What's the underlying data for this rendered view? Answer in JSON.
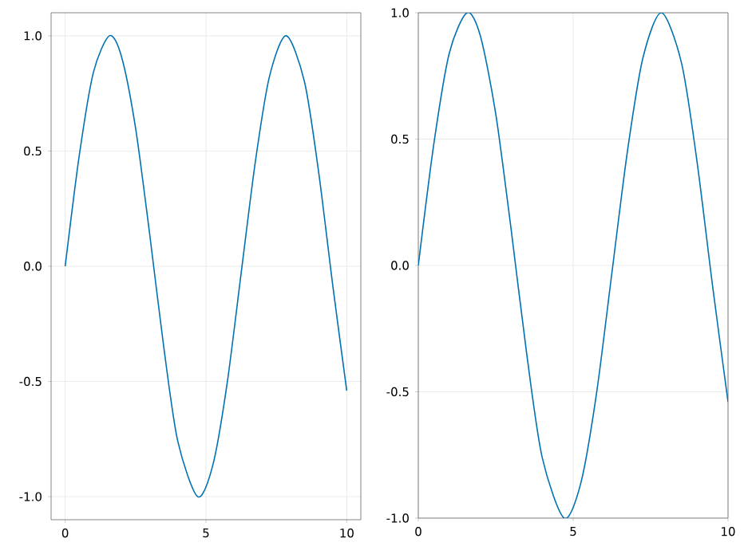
{
  "chart_data": [
    {
      "type": "line",
      "x": [
        0,
        0.5,
        1,
        1.57,
        2,
        2.5,
        3,
        3.5,
        4,
        4.71,
        5.25,
        5.75,
        6.25,
        6.75,
        7.25,
        7.85,
        8.5,
        9,
        9.5,
        10
      ],
      "series": [
        {
          "color": "#0072b2",
          "values": [
            0,
            0.48,
            0.84,
            1.0,
            0.91,
            0.6,
            0.14,
            -0.35,
            -0.76,
            -1.0,
            -0.86,
            -0.51,
            -0.03,
            0.45,
            0.82,
            1.0,
            0.8,
            0.41,
            -0.08,
            -0.54
          ]
        }
      ],
      "xlim": [
        -0.5,
        10.5
      ],
      "ylim": [
        -1.1,
        1.1
      ],
      "xticks": [
        0,
        5,
        10
      ],
      "yticks": [
        {
          "value": -1,
          "label": "-1.0"
        },
        {
          "value": -0.5,
          "label": "-0.5"
        },
        {
          "value": 0,
          "label": "0.0"
        },
        {
          "value": 0.5,
          "label": "0.5"
        },
        {
          "value": 1,
          "label": "1.0"
        }
      ],
      "grid": true,
      "line_style": "solid",
      "marker": "none"
    },
    {
      "type": "line",
      "x": [
        0,
        0.5,
        1,
        1.57,
        2,
        2.5,
        3,
        3.5,
        4,
        4.71,
        5.25,
        5.75,
        6.25,
        6.75,
        7.25,
        7.85,
        8.5,
        9,
        9.5,
        10
      ],
      "series": [
        {
          "color": "#0072b2",
          "values": [
            0,
            0.48,
            0.84,
            1.0,
            0.91,
            0.6,
            0.14,
            -0.35,
            -0.76,
            -1.0,
            -0.86,
            -0.51,
            -0.03,
            0.45,
            0.82,
            1.0,
            0.8,
            0.41,
            -0.08,
            -0.54
          ]
        }
      ],
      "xlim": [
        0,
        10
      ],
      "ylim": [
        -1,
        1
      ],
      "xticks": [
        0,
        5,
        10
      ],
      "yticks": [
        {
          "value": -1,
          "label": "-1.0"
        },
        {
          "value": -0.5,
          "label": "-0.5"
        },
        {
          "value": 0,
          "label": "0.0"
        },
        {
          "value": 0.5,
          "label": "0.5"
        },
        {
          "value": 1,
          "label": "1.0"
        }
      ],
      "grid": true,
      "line_style": "solid",
      "marker": "none"
    }
  ]
}
